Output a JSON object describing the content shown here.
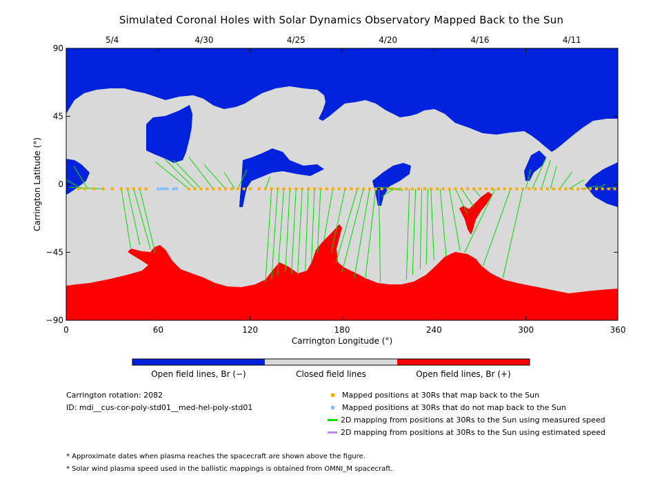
{
  "title": "Simulated Coronal Holes with Solar Dynamics Observatory Mapped Back to the Sun",
  "chart_data": {
    "type": "map",
    "xlabel": "Carrington Longitude (°)",
    "ylabel": "Carrington Latitude (°)",
    "xlim": [
      0,
      360
    ],
    "ylim": [
      -90,
      90
    ],
    "x_ticks": [
      "0",
      "60",
      "120",
      "180",
      "240",
      "300",
      "360"
    ],
    "y_ticks": [
      "90",
      "45",
      "0",
      "−45",
      "−90"
    ],
    "top_date_ticks": [
      {
        "label": "5/4",
        "lon": 30
      },
      {
        "label": "4/30",
        "lon": 90
      },
      {
        "label": "4/25",
        "lon": 150
      },
      {
        "label": "4/20",
        "lon": 210
      },
      {
        "label": "4/16",
        "lon": 270
      },
      {
        "label": "4/11",
        "lon": 330
      }
    ],
    "colors": {
      "negative": "#0022dd",
      "closed": "#d9d9d9",
      "positive": "#ff0000",
      "mapped": "#ffaa00",
      "unmapped": "#7fbfff",
      "measured": "#00dd00",
      "estimated": "#bb88ee"
    },
    "mapped_positions_lon": [
      8,
      12,
      18,
      24,
      30,
      36,
      40,
      44,
      48,
      52,
      80,
      84,
      88,
      92,
      96,
      100,
      104,
      108,
      112,
      116,
      120,
      126,
      130,
      134,
      138,
      142,
      146,
      150,
      154,
      158,
      162,
      166,
      170,
      174,
      178,
      182,
      186,
      190,
      194,
      198,
      202,
      206,
      210,
      214,
      218,
      222,
      226,
      230,
      234,
      238,
      242,
      246,
      250,
      254,
      258,
      262,
      266,
      270,
      274,
      278,
      282,
      286,
      290,
      294,
      298,
      302,
      306,
      310,
      314,
      318,
      322,
      326,
      330,
      334,
      338,
      342,
      346,
      350,
      354,
      358
    ],
    "unmapped_positions_lon": [
      60,
      62,
      64,
      66,
      70,
      72
    ],
    "measured_mappings": [
      {
        "lon30": 10,
        "lon": 0,
        "lat": 3
      },
      {
        "lon30": 14,
        "lon": 5,
        "lat": 12
      },
      {
        "lon30": 24,
        "lon": 2,
        "lat": -2
      },
      {
        "lon30": 36,
        "lon": 42,
        "lat": -42
      },
      {
        "lon30": 40,
        "lon": 48,
        "lat": -40
      },
      {
        "lon30": 44,
        "lon": 55,
        "lat": -43
      },
      {
        "lon30": 48,
        "lon": 58,
        "lat": -45
      },
      {
        "lon30": 80,
        "lon": 58,
        "lat": 15
      },
      {
        "lon30": 84,
        "lon": 64,
        "lat": 17
      },
      {
        "lon30": 88,
        "lon": 70,
        "lat": 16
      },
      {
        "lon30": 96,
        "lon": 80,
        "lat": 18
      },
      {
        "lon30": 104,
        "lon": 90,
        "lat": 13
      },
      {
        "lon30": 110,
        "lon": 103,
        "lat": 8
      },
      {
        "lon30": 112,
        "lon": 118,
        "lat": 10
      },
      {
        "lon30": 130,
        "lon": 133,
        "lat": 5
      },
      {
        "lon30": 134,
        "lon": 130,
        "lat": -65
      },
      {
        "lon30": 138,
        "lon": 134,
        "lat": -63
      },
      {
        "lon30": 142,
        "lon": 138,
        "lat": -60
      },
      {
        "lon30": 146,
        "lon": 143,
        "lat": -58
      },
      {
        "lon30": 150,
        "lon": 147,
        "lat": -59
      },
      {
        "lon30": 154,
        "lon": 151,
        "lat": -60
      },
      {
        "lon30": 158,
        "lon": 156,
        "lat": -57
      },
      {
        "lon30": 162,
        "lon": 160,
        "lat": -52
      },
      {
        "lon30": 166,
        "lon": 164,
        "lat": -45
      },
      {
        "lon30": 174,
        "lon": 168,
        "lat": -38
      },
      {
        "lon30": 182,
        "lon": 173,
        "lat": -45
      },
      {
        "lon30": 190,
        "lon": 176,
        "lat": -52
      },
      {
        "lon30": 194,
        "lon": 180,
        "lat": -58
      },
      {
        "lon30": 198,
        "lon": 188,
        "lat": -62
      },
      {
        "lon30": 202,
        "lon": 195,
        "lat": -64
      },
      {
        "lon30": 204,
        "lon": 205,
        "lat": -65
      },
      {
        "lon30": 210,
        "lon": 220,
        "lat": -4
      },
      {
        "lon30": 214,
        "lon": 206,
        "lat": -8
      },
      {
        "lon30": 218,
        "lon": 203,
        "lat": -2
      },
      {
        "lon30": 224,
        "lon": 222,
        "lat": -63
      },
      {
        "lon30": 228,
        "lon": 226,
        "lat": -60
      },
      {
        "lon30": 232,
        "lon": 231,
        "lat": -56
      },
      {
        "lon30": 236,
        "lon": 235,
        "lat": -53
      },
      {
        "lon30": 238,
        "lon": 240,
        "lat": -50
      },
      {
        "lon30": 244,
        "lon": 248,
        "lat": -48
      },
      {
        "lon30": 250,
        "lon": 257,
        "lat": -44
      },
      {
        "lon30": 254,
        "lon": 262,
        "lat": -20
      },
      {
        "lon30": 258,
        "lon": 266,
        "lat": -15
      },
      {
        "lon30": 266,
        "lon": 270,
        "lat": -8
      },
      {
        "lon30": 280,
        "lon": 260,
        "lat": -45
      },
      {
        "lon30": 290,
        "lon": 272,
        "lat": -54
      },
      {
        "lon30": 298,
        "lon": 285,
        "lat": -62
      },
      {
        "lon30": 300,
        "lon": 303,
        "lat": 10
      },
      {
        "lon30": 304,
        "lon": 313,
        "lat": 17
      },
      {
        "lon30": 310,
        "lon": 316,
        "lat": 16
      },
      {
        "lon30": 316,
        "lon": 320,
        "lat": 12
      },
      {
        "lon30": 322,
        "lon": 330,
        "lat": 8
      },
      {
        "lon30": 328,
        "lon": 338,
        "lat": 3
      },
      {
        "lon30": 336,
        "lon": 347,
        "lat": -1
      },
      {
        "lon30": 346,
        "lon": 352,
        "lat": 0
      },
      {
        "lon30": 352,
        "lon": 358,
        "lat": -2
      }
    ]
  },
  "colorbar": {
    "negative_label": "Open field lines, Br (−)",
    "closed_label": "Closed field lines",
    "positive_label": "Open field lines, Br (+)"
  },
  "info": {
    "rotation": "Carrington rotation: 2082",
    "id": "ID: mdi__cus-cor-poly-std01__med-hel-poly-std01"
  },
  "legend": {
    "mapped": "Mapped positions at 30Rs that map back to the Sun",
    "unmapped": "Mapped positions at 30Rs that do not map back to the Sun",
    "measured": "2D mapping from positions at 30Rs to the Sun using measured speed",
    "estimated": "2D mapping from positions at 30Rs to the Sun using estimated speed"
  },
  "notes": {
    "note1": "* Approximate dates when plasma reaches the spacecraft are shown above the figure.",
    "note2": "* Solar wind plasma speed used in the ballistic mappings is obtained from OMNI_M spacecraft."
  }
}
